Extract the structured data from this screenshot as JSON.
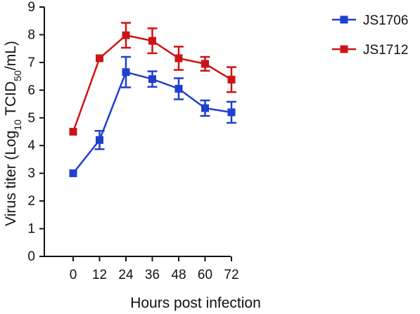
{
  "chart_data": {
    "type": "line",
    "title": "",
    "xlabel": "Hours post infection",
    "ylabel": {
      "prefix": "Virus titer (Log",
      "sub1": "10",
      "middle": " TCID",
      "sub2": "50",
      "suffix": "/mL)"
    },
    "x": [
      0,
      12,
      24,
      36,
      48,
      60,
      72
    ],
    "xticks": [
      "0",
      "12",
      "24",
      "36",
      "48",
      "60",
      "72"
    ],
    "yticks": [
      "0",
      "1",
      "2",
      "3",
      "4",
      "5",
      "6",
      "7",
      "8",
      "9"
    ],
    "ylim": [
      0,
      9
    ],
    "grid": false,
    "legend_position": "top-right",
    "series": [
      {
        "name": "JS1706",
        "color": "#1f3fcf",
        "marker": "square",
        "values": [
          3.0,
          4.2,
          6.65,
          6.4,
          6.05,
          5.35,
          5.2
        ],
        "errors": [
          0.05,
          0.33,
          0.55,
          0.28,
          0.38,
          0.28,
          0.38
        ]
      },
      {
        "name": "JS1712",
        "color": "#cc1414",
        "marker": "square",
        "values": [
          4.5,
          7.15,
          7.98,
          7.78,
          7.15,
          6.95,
          6.38
        ],
        "errors": [
          0.05,
          0.05,
          0.45,
          0.45,
          0.42,
          0.25,
          0.45
        ]
      }
    ]
  }
}
